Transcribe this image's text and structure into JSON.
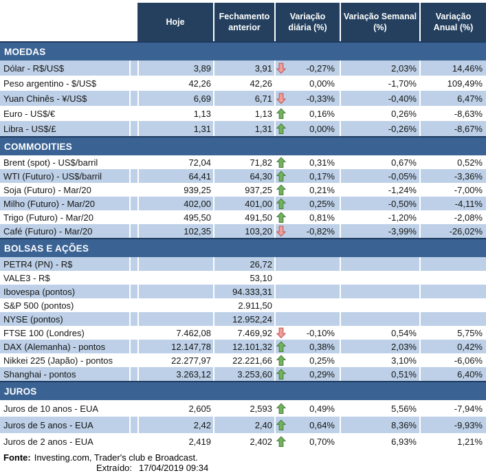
{
  "chart_data": {
    "type": "table",
    "columns": [
      "Hoje",
      "Fechamento anterior",
      "Variação diária (%)",
      "Variação Semanal (%)",
      "Variação Anual (%)"
    ],
    "sections": [
      {
        "id": "moedas",
        "title": "MOEDAS",
        "rows": [
          {
            "label": "Dólar - R$/US$",
            "hoje": "3,89",
            "fechamento": "3,91",
            "arrow": "down",
            "diaria": "-0,27%",
            "semanal": "2,03%",
            "anual": "14,46%"
          },
          {
            "label": "Peso argentino - $/US$",
            "hoje": "42,26",
            "fechamento": "42,26",
            "arrow": "",
            "diaria": "0,00%",
            "semanal": "-1,70%",
            "anual": "109,49%"
          },
          {
            "label": "Yuan Chinês - ¥/US$",
            "hoje": "6,69",
            "fechamento": "6,71",
            "arrow": "down",
            "diaria": "-0,33%",
            "semanal": "-0,40%",
            "anual": "6,47%"
          },
          {
            "label": "Euro - US$/€",
            "hoje": "1,13",
            "fechamento": "1,13",
            "arrow": "up",
            "diaria": "0,16%",
            "semanal": "0,26%",
            "anual": "-8,63%"
          },
          {
            "label": "Libra - US$/£",
            "hoje": "1,31",
            "fechamento": "1,31",
            "arrow": "up",
            "diaria": "0,00%",
            "semanal": "-0,26%",
            "anual": "-8,67%"
          }
        ]
      },
      {
        "id": "commodities",
        "title": "COMMODITIES",
        "rows": [
          {
            "label": "Brent (spot) - US$/barril",
            "hoje": "72,04",
            "fechamento": "71,82",
            "arrow": "up",
            "diaria": "0,31%",
            "semanal": "0,67%",
            "anual": "0,52%"
          },
          {
            "label": "WTI (Futuro) - US$/barril",
            "hoje": "64,41",
            "fechamento": "64,30",
            "arrow": "up",
            "diaria": "0,17%",
            "semanal": "-0,05%",
            "anual": "-3,36%"
          },
          {
            "label": "Soja (Futuro) - Mar/20",
            "hoje": "939,25",
            "fechamento": "937,25",
            "arrow": "up",
            "diaria": "0,21%",
            "semanal": "-1,24%",
            "anual": "-7,00%"
          },
          {
            "label": "Milho (Futuro) - Mar/20",
            "hoje": "402,00",
            "fechamento": "401,00",
            "arrow": "up",
            "diaria": "0,25%",
            "semanal": "-0,50%",
            "anual": "-4,11%"
          },
          {
            "label": "Trigo (Futuro) - Mar/20",
            "hoje": "495,50",
            "fechamento": "491,50",
            "arrow": "up",
            "diaria": "0,81%",
            "semanal": "-1,20%",
            "anual": "-2,08%"
          },
          {
            "label": "Café (Futuro) - Mar/20",
            "hoje": "102,35",
            "fechamento": "103,20",
            "arrow": "down",
            "diaria": "-0,82%",
            "semanal": "-3,99%",
            "anual": "-26,02%"
          }
        ]
      },
      {
        "id": "bolsas",
        "title": "BOLSAS E AÇÕES",
        "rows": [
          {
            "label": "PETR4 (PN) - R$",
            "hoje": "",
            "fechamento": "26,72",
            "arrow": "",
            "diaria": "",
            "semanal": "",
            "anual": ""
          },
          {
            "label": "VALE3 - R$",
            "hoje": "",
            "fechamento": "53,10",
            "arrow": "",
            "diaria": "",
            "semanal": "",
            "anual": ""
          },
          {
            "label": "Ibovespa (pontos)",
            "hoje": "",
            "fechamento": "94.333,31",
            "arrow": "",
            "diaria": "",
            "semanal": "",
            "anual": ""
          },
          {
            "label": "S&P 500 (pontos)",
            "hoje": "",
            "fechamento": "2.911,50",
            "arrow": "",
            "diaria": "",
            "semanal": "",
            "anual": ""
          },
          {
            "label": "NYSE (pontos)",
            "hoje": "",
            "fechamento": "12.952,24",
            "arrow": "",
            "diaria": "",
            "semanal": "",
            "anual": ""
          },
          {
            "label": "FTSE 100 (Londres)",
            "hoje": "7.462,08",
            "fechamento": "7.469,92",
            "arrow": "down",
            "diaria": "-0,10%",
            "semanal": "0,54%",
            "anual": "5,75%"
          },
          {
            "label": "DAX (Alemanha) - pontos",
            "hoje": "12.147,78",
            "fechamento": "12.101,32",
            "arrow": "up",
            "diaria": "0,38%",
            "semanal": "2,03%",
            "anual": "0,42%"
          },
          {
            "label": "Nikkei 225 (Japão) - pontos",
            "hoje": "22.277,97",
            "fechamento": "22.221,66",
            "arrow": "up",
            "diaria": "0,25%",
            "semanal": "3,10%",
            "anual": "-6,06%"
          },
          {
            "label": "Shanghai - pontos",
            "hoje": "3.263,12",
            "fechamento": "3.253,60",
            "arrow": "up",
            "diaria": "0,29%",
            "semanal": "0,51%",
            "anual": "6,40%"
          }
        ]
      },
      {
        "id": "juros",
        "title": "JUROS",
        "rows": [
          {
            "label": "Juros de 10 anos - EUA",
            "hoje": "2,605",
            "fechamento": "2,593",
            "arrow": "up",
            "diaria": "0,49%",
            "semanal": "5,56%",
            "anual": "-7,94%"
          },
          {
            "label": "Juros de 5 anos - EUA",
            "hoje": "2,42",
            "fechamento": "2,40",
            "arrow": "up",
            "diaria": "0,64%",
            "semanal": "8,36%",
            "anual": "-9,93%"
          },
          {
            "label": "Juros de 2 anos - EUA",
            "hoje": "2,419",
            "fechamento": "2,402",
            "arrow": "up",
            "diaria": "0,70%",
            "semanal": "6,93%",
            "anual": "1,21%"
          }
        ]
      }
    ]
  },
  "footer": {
    "fonte_label": "Fonte:",
    "fonte_text": "Investing.com, Trader's club e Broadcast.",
    "extraido_label": "Extraído:",
    "extraido_value": "17/04/2019 09:34"
  },
  "colors": {
    "header_bg": "#24405E",
    "section_bg": "#3A6394",
    "section_border": "#1E3A5F",
    "row_alt_bg": "#BDD0E7",
    "up_arrow_fill": "#72B25C",
    "up_arrow_stroke": "#44753B",
    "down_arrow_fill": "#EE9E9B",
    "down_arrow_stroke": "#BE4B48"
  }
}
